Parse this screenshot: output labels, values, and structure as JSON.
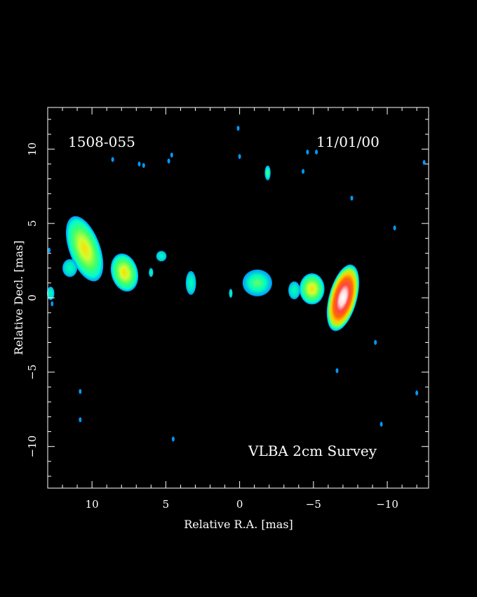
{
  "image": {
    "source_name": "1508-055",
    "epoch": "11/01/00",
    "survey": "VLBA 2cm Survey",
    "xlabel": "Relative R.A. [mas]",
    "ylabel": "Relative Decl. [mas]",
    "xlim": [
      13,
      -12.8
    ],
    "ylim": [
      -12.8,
      12.8
    ],
    "x_ticks": [
      10,
      5,
      0,
      -5,
      -10
    ],
    "x_tick_labels": [
      "10",
      "5",
      "0",
      "−5",
      "−10"
    ],
    "y_ticks": [
      10,
      5,
      0,
      -5,
      -10
    ],
    "y_tick_labels": [
      "10",
      "5",
      "0",
      "−5",
      "−10"
    ],
    "background_color": "#000000",
    "frame_color": "#ffffff",
    "colormap": [
      "#00aaff",
      "#00ffbb",
      "#55ff55",
      "#ccff33",
      "#ffcc00",
      "#ff6a00",
      "#ff1a1a",
      "#ffffff"
    ],
    "components": [
      {
        "ra": 10.5,
        "dec": 3.3,
        "ra_halfwidth": 1.05,
        "dec_halfwidth": 2.3,
        "tilt_deg": -20,
        "level": 4
      },
      {
        "ra": 11.5,
        "dec": 2.0,
        "ra_halfwidth": 0.5,
        "dec_halfwidth": 0.6,
        "tilt_deg": 0,
        "level": 1
      },
      {
        "ra": 12.8,
        "dec": 0.3,
        "ra_halfwidth": 0.25,
        "dec_halfwidth": 0.45,
        "tilt_deg": 0,
        "level": 1
      },
      {
        "ra": 7.8,
        "dec": 1.7,
        "ra_halfwidth": 0.9,
        "dec_halfwidth": 1.3,
        "tilt_deg": -15,
        "level": 4
      },
      {
        "ra": 5.3,
        "dec": 2.8,
        "ra_halfwidth": 0.35,
        "dec_halfwidth": 0.35,
        "tilt_deg": 0,
        "level": 1
      },
      {
        "ra": 6.0,
        "dec": 1.7,
        "ra_halfwidth": 0.15,
        "dec_halfwidth": 0.3,
        "tilt_deg": 0,
        "level": 1
      },
      {
        "ra": 3.3,
        "dec": 1.0,
        "ra_halfwidth": 0.35,
        "dec_halfwidth": 0.8,
        "tilt_deg": 0,
        "level": 1
      },
      {
        "ra": 0.6,
        "dec": 0.3,
        "ra_halfwidth": 0.12,
        "dec_halfwidth": 0.3,
        "tilt_deg": 0,
        "level": 1
      },
      {
        "ra": -1.2,
        "dec": 1.0,
        "ra_halfwidth": 1.0,
        "dec_halfwidth": 0.9,
        "tilt_deg": 0,
        "level": 2
      },
      {
        "ra": -1.9,
        "dec": 8.4,
        "ra_halfwidth": 0.2,
        "dec_halfwidth": 0.5,
        "tilt_deg": 0,
        "level": 2
      },
      {
        "ra": -3.7,
        "dec": 0.5,
        "ra_halfwidth": 0.4,
        "dec_halfwidth": 0.6,
        "tilt_deg": 0,
        "level": 1
      },
      {
        "ra": -4.9,
        "dec": 0.6,
        "ra_halfwidth": 0.85,
        "dec_halfwidth": 1.05,
        "tilt_deg": 0,
        "level": 4
      },
      {
        "ra": -7.0,
        "dec": 0.0,
        "ra_halfwidth": 0.95,
        "dec_halfwidth": 2.3,
        "tilt_deg": 15,
        "level": 8
      }
    ],
    "noise_points": [
      {
        "ra": 0.1,
        "dec": 11.4
      },
      {
        "ra": 0.0,
        "dec": 9.5
      },
      {
        "ra": -4.3,
        "dec": 8.5
      },
      {
        "ra": -4.6,
        "dec": 9.8
      },
      {
        "ra": -5.2,
        "dec": 9.8
      },
      {
        "ra": -7.6,
        "dec": 6.7
      },
      {
        "ra": -10.5,
        "dec": 4.7
      },
      {
        "ra": -12.5,
        "dec": 9.1
      },
      {
        "ra": -6.6,
        "dec": -4.9
      },
      {
        "ra": -9.2,
        "dec": -3.0
      },
      {
        "ra": -9.6,
        "dec": -8.5
      },
      {
        "ra": -12.0,
        "dec": -6.4
      },
      {
        "ra": 4.5,
        "dec": -9.5
      },
      {
        "ra": 10.8,
        "dec": -6.3
      },
      {
        "ra": 10.8,
        "dec": -8.2
      },
      {
        "ra": 6.5,
        "dec": 8.9
      },
      {
        "ra": 6.8,
        "dec": 9.0
      },
      {
        "ra": 4.6,
        "dec": 9.6
      },
      {
        "ra": 4.8,
        "dec": 9.2
      },
      {
        "ra": 8.6,
        "dec": 9.3
      },
      {
        "ra": 12.9,
        "dec": 3.2
      },
      {
        "ra": 12.7,
        "dec": -0.4
      }
    ]
  }
}
